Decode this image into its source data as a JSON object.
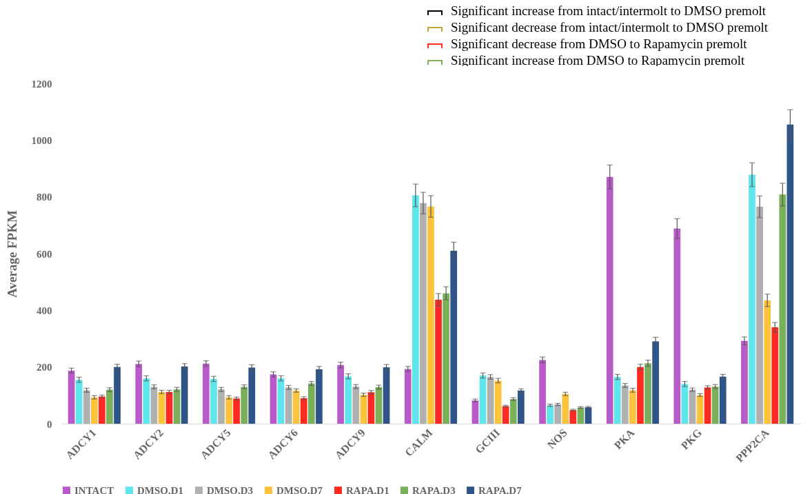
{
  "chart_data": {
    "type": "bar",
    "ylabel": "Average FPKM",
    "categories": [
      "ADCY1",
      "ADCY2",
      "ADCY5",
      "ADCY6",
      "ADCY9",
      "CALM",
      "GCIII",
      "NOS",
      "PKA",
      "PKG",
      "PPP2CA"
    ],
    "series": [
      {
        "name": "INTACT",
        "color": "#b85bc9",
        "values": [
          187,
          211,
          212,
          174,
          207,
          193,
          82,
          225,
          870,
          688,
          292
        ],
        "errors": [
          9,
          10,
          10,
          9,
          10,
          9,
          5,
          10,
          42,
          35,
          14
        ]
      },
      {
        "name": "DMSO.D1",
        "color": "#5ee6ec",
        "values": [
          155,
          160,
          158,
          160,
          167,
          805,
          170,
          65,
          165,
          140,
          878
        ],
        "errors": [
          9,
          9,
          9,
          9,
          9,
          40,
          9,
          4,
          9,
          9,
          42
        ]
      },
      {
        "name": "DMSO.D3",
        "color": "#b0b0b0",
        "values": [
          118,
          130,
          121,
          128,
          131,
          778,
          165,
          68,
          135,
          120,
          765
        ],
        "errors": [
          7,
          7,
          7,
          7,
          7,
          38,
          8,
          4,
          7,
          6,
          38
        ]
      },
      {
        "name": "DMSO.D7",
        "color": "#fcc43a",
        "values": [
          93,
          112,
          93,
          117,
          102,
          766,
          152,
          105,
          118,
          101,
          435
        ],
        "errors": [
          6,
          6,
          6,
          6,
          6,
          38,
          8,
          6,
          7,
          5,
          22
        ]
      },
      {
        "name": "RAPA.D1",
        "color": "#ff2a22",
        "values": [
          96,
          112,
          89,
          90,
          111,
          437,
          62,
          48,
          200,
          128,
          340
        ],
        "errors": [
          5,
          6,
          5,
          5,
          6,
          22,
          3,
          3,
          10,
          6,
          17
        ]
      },
      {
        "name": "RAPA.D3",
        "color": "#7bb05a",
        "values": [
          120,
          121,
          130,
          142,
          129,
          460,
          87,
          57,
          213,
          131,
          808
        ],
        "errors": [
          7,
          7,
          7,
          7,
          7,
          23,
          5,
          3,
          11,
          7,
          40
        ]
      },
      {
        "name": "RAPA.D7",
        "color": "#2e5488",
        "values": [
          200,
          202,
          198,
          192,
          199,
          610,
          117,
          58,
          290,
          166,
          1055
        ],
        "errors": [
          10,
          10,
          10,
          10,
          10,
          30,
          6,
          3,
          15,
          8,
          52
        ]
      }
    ],
    "ylim": [
      0,
      1200
    ],
    "yticks": [
      0,
      200,
      400,
      600,
      800,
      1000,
      1200
    ],
    "legend": "bottom",
    "annotations": [
      "Significant increase from intact/intermolt to DMSO premolt",
      "Significant decrease from intact/intermolt to DMSO premolt",
      "Significant decrease from DMSO to Rapamycin premolt",
      "Significant increase from DMSO to Rapamycin premolt"
    ]
  }
}
